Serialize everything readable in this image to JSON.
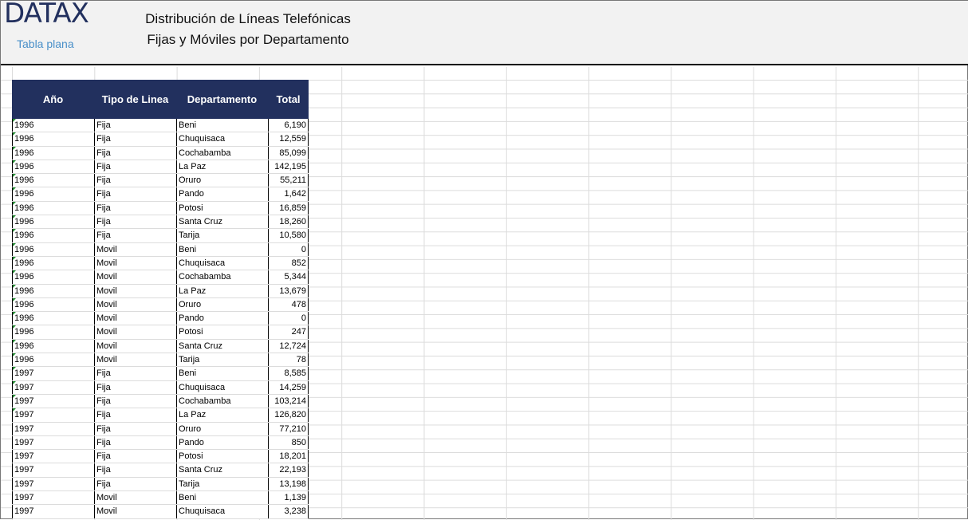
{
  "header": {
    "logo": "DATAX",
    "subtitle": "Tabla plana",
    "title_line1": "Distribución de Líneas Telefónicas",
    "title_line2": "Fijas y Móviles por Departamento"
  },
  "table": {
    "columns": [
      "Año",
      "Tipo de Linea",
      "Departamento",
      "Total"
    ],
    "rows": [
      [
        "1996",
        "Fija",
        "Beni",
        "6,190",
        true
      ],
      [
        "1996",
        "Fija",
        "Chuquisaca",
        "12,559",
        true
      ],
      [
        "1996",
        "Fija",
        "Cochabamba",
        "85,099",
        true
      ],
      [
        "1996",
        "Fija",
        "La Paz",
        "142,195",
        true
      ],
      [
        "1996",
        "Fija",
        "Oruro",
        "55,211",
        true
      ],
      [
        "1996",
        "Fija",
        "Pando",
        "1,642",
        true
      ],
      [
        "1996",
        "Fija",
        "Potosi",
        "16,859",
        true
      ],
      [
        "1996",
        "Fija",
        "Santa Cruz",
        "18,260",
        true
      ],
      [
        "1996",
        "Fija",
        "Tarija",
        "10,580",
        true
      ],
      [
        "1996",
        "Movil",
        "Beni",
        "0",
        true
      ],
      [
        "1996",
        "Movil",
        "Chuquisaca",
        "852",
        true
      ],
      [
        "1996",
        "Movil",
        "Cochabamba",
        "5,344",
        true
      ],
      [
        "1996",
        "Movil",
        "La Paz",
        "13,679",
        true
      ],
      [
        "1996",
        "Movil",
        "Oruro",
        "478",
        true
      ],
      [
        "1996",
        "Movil",
        "Pando",
        "0",
        true
      ],
      [
        "1996",
        "Movil",
        "Potosi",
        "247",
        true
      ],
      [
        "1996",
        "Movil",
        "Santa Cruz",
        "12,724",
        true
      ],
      [
        "1996",
        "Movil",
        "Tarija",
        "78",
        true
      ],
      [
        "1997",
        "Fija",
        "Beni",
        "8,585",
        true
      ],
      [
        "1997",
        "Fija",
        "Chuquisaca",
        "14,259",
        true
      ],
      [
        "1997",
        "Fija",
        "Cochabamba",
        "103,214",
        true
      ],
      [
        "1997",
        "Fija",
        "La Paz",
        "126,820",
        true
      ],
      [
        "1997",
        "Fija",
        "Oruro",
        "77,210",
        false
      ],
      [
        "1997",
        "Fija",
        "Pando",
        "850",
        false
      ],
      [
        "1997",
        "Fija",
        "Potosi",
        "18,201",
        false
      ],
      [
        "1997",
        "Fija",
        "Santa Cruz",
        "22,193",
        false
      ],
      [
        "1997",
        "Fija",
        "Tarija",
        "13,198",
        false
      ],
      [
        "1997",
        "Movil",
        "Beni",
        "1,139",
        false
      ],
      [
        "1997",
        "Movil",
        "Chuquisaca",
        "3,238",
        false
      ]
    ]
  },
  "colors": {
    "header_bg": "#22305e",
    "logo": "#22305e",
    "link": "#4a90c9",
    "error_indicator": "#1e8a2e"
  }
}
